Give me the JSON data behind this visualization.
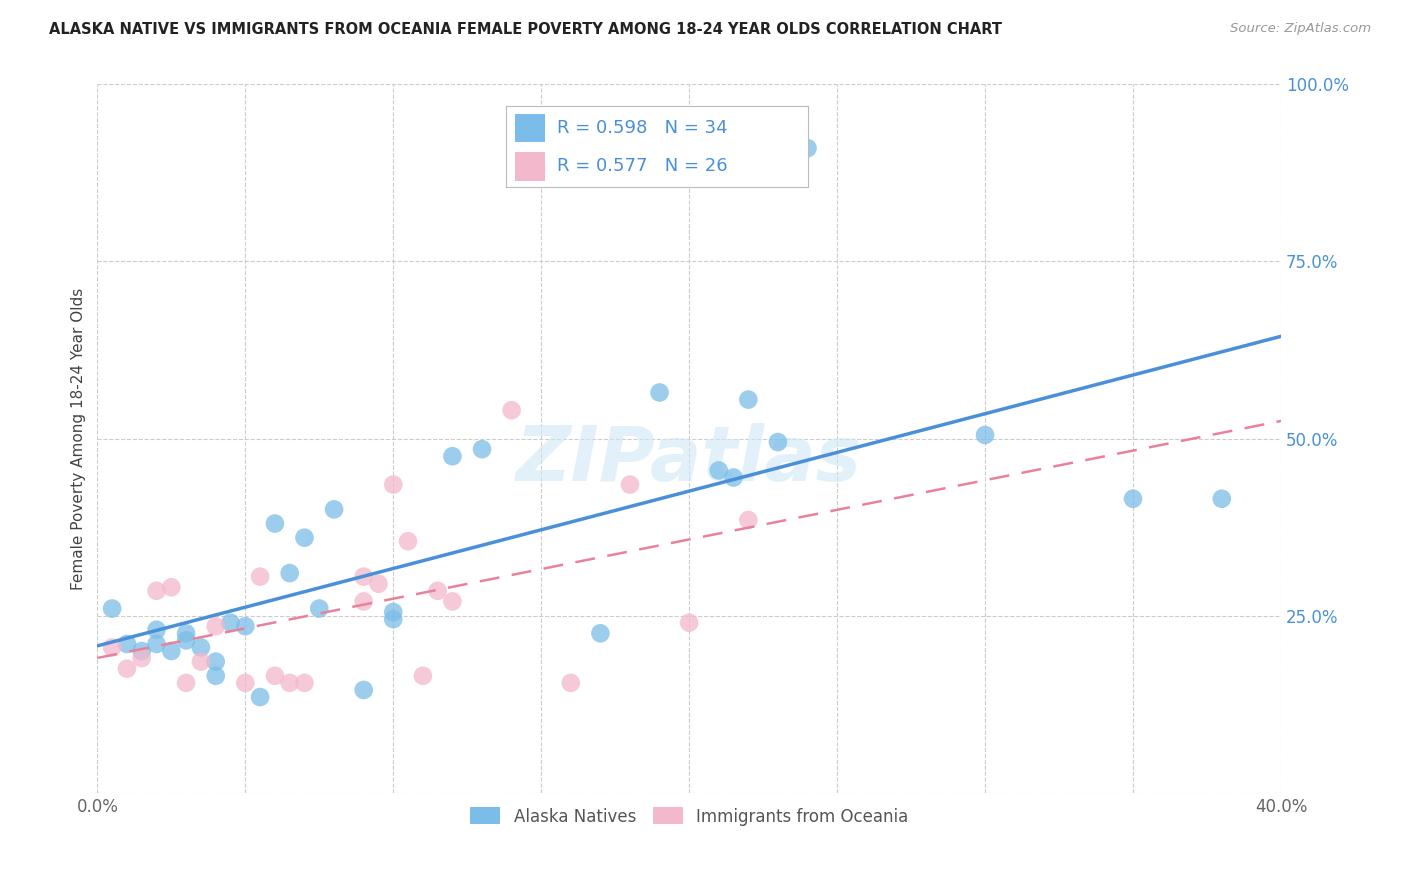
{
  "title": "ALASKA NATIVE VS IMMIGRANTS FROM OCEANIA FEMALE POVERTY AMONG 18-24 YEAR OLDS CORRELATION CHART",
  "source": "Source: ZipAtlas.com",
  "ylabel": "Female Poverty Among 18-24 Year Olds",
  "xlim": [
    0.0,
    0.4
  ],
  "ylim": [
    0.0,
    1.0
  ],
  "xticks": [
    0.0,
    0.05,
    0.1,
    0.15,
    0.2,
    0.25,
    0.3,
    0.35,
    0.4
  ],
  "yticks": [
    0.0,
    0.25,
    0.5,
    0.75,
    1.0
  ],
  "blue_R": 0.598,
  "blue_N": 34,
  "pink_R": 0.577,
  "pink_N": 26,
  "blue_color": "#7bbde8",
  "pink_color": "#f4b8cc",
  "line_blue": "#4a90d9",
  "line_pink": "#e8829a",
  "legend1": "Alaska Natives",
  "legend2": "Immigrants from Oceania",
  "watermark": "ZIPatlas",
  "blue_x": [
    0.005,
    0.01,
    0.015,
    0.02,
    0.02,
    0.025,
    0.03,
    0.03,
    0.035,
    0.04,
    0.04,
    0.045,
    0.05,
    0.055,
    0.06,
    0.065,
    0.07,
    0.075,
    0.08,
    0.09,
    0.1,
    0.1,
    0.12,
    0.13,
    0.17,
    0.19,
    0.21,
    0.215,
    0.22,
    0.23,
    0.24,
    0.3,
    0.35,
    0.38
  ],
  "blue_y": [
    0.26,
    0.21,
    0.2,
    0.21,
    0.23,
    0.2,
    0.215,
    0.225,
    0.205,
    0.185,
    0.165,
    0.24,
    0.235,
    0.135,
    0.38,
    0.31,
    0.36,
    0.26,
    0.4,
    0.145,
    0.245,
    0.255,
    0.475,
    0.485,
    0.225,
    0.565,
    0.455,
    0.445,
    0.555,
    0.495,
    0.91,
    0.505,
    0.415,
    0.415
  ],
  "pink_x": [
    0.005,
    0.01,
    0.015,
    0.02,
    0.025,
    0.03,
    0.035,
    0.04,
    0.05,
    0.055,
    0.06,
    0.065,
    0.07,
    0.09,
    0.09,
    0.095,
    0.1,
    0.105,
    0.11,
    0.115,
    0.12,
    0.14,
    0.16,
    0.18,
    0.2,
    0.22
  ],
  "pink_y": [
    0.205,
    0.175,
    0.19,
    0.285,
    0.29,
    0.155,
    0.185,
    0.235,
    0.155,
    0.305,
    0.165,
    0.155,
    0.155,
    0.27,
    0.305,
    0.295,
    0.435,
    0.355,
    0.165,
    0.285,
    0.27,
    0.54,
    0.155,
    0.435,
    0.24,
    0.385
  ]
}
